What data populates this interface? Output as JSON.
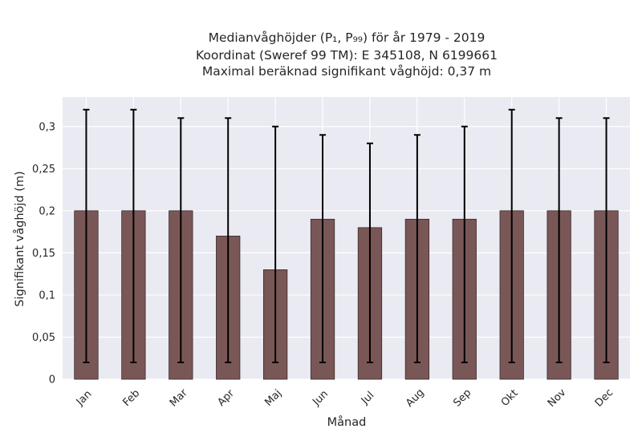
{
  "chart_data": {
    "type": "bar",
    "title_lines": [
      "Medianvåghöjder (P₁, P₉₉) för år 1979 - 2019",
      "Koordinat (Sweref 99 TM): E 345108, N 6199661",
      "Maximal beräknad signifikant våghöjd: 0,37 m"
    ],
    "xlabel": "Månad",
    "ylabel": "Signifikant våghöjd (m)",
    "categories": [
      "Jan",
      "Feb",
      "Mar",
      "Apr",
      "Maj",
      "Jun",
      "Jul",
      "Aug",
      "Sep",
      "Okt",
      "Nov",
      "Dec"
    ],
    "values": [
      0.2,
      0.2,
      0.2,
      0.17,
      0.13,
      0.19,
      0.18,
      0.19,
      0.19,
      0.2,
      0.2,
      0.2
    ],
    "err_low": [
      0.02,
      0.02,
      0.02,
      0.02,
      0.02,
      0.02,
      0.02,
      0.02,
      0.02,
      0.02,
      0.02,
      0.02
    ],
    "err_high": [
      0.32,
      0.32,
      0.31,
      0.31,
      0.3,
      0.29,
      0.28,
      0.29,
      0.3,
      0.32,
      0.31,
      0.31
    ],
    "yticks": [
      "0",
      "0,05",
      "0,1",
      "0,15",
      "0,2",
      "0,25",
      "0,3"
    ],
    "ylim": [
      0,
      0.335
    ],
    "grid": true,
    "colors": {
      "bar": "#7a5757",
      "bar_edge": "#3a2a2a",
      "plot_bg": "#eaeaf2",
      "grid": "#ffffff",
      "errorbar": "#000000"
    }
  }
}
